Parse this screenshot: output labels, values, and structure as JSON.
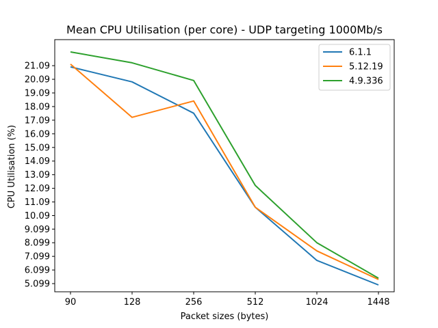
{
  "chart_data": {
    "type": "line",
    "title": "Mean CPU Utilisation (per core) - UDP targeting 1000Mb/s",
    "xlabel": "Packet sizes (bytes)",
    "ylabel": "CPU Utilisation (%)",
    "categories": [
      "90",
      "128",
      "256",
      "512",
      "1024",
      "1448"
    ],
    "yticks": [
      "5.099",
      "6.099",
      "7.099",
      "8.099",
      "9.099",
      "10.09",
      "11.09",
      "12.09",
      "13.09",
      "14.09",
      "15.09",
      "16.09",
      "17.09",
      "18.09",
      "19.09",
      "20.09",
      "21.09"
    ],
    "ytick_values": [
      5.099,
      6.099,
      7.099,
      8.099,
      9.099,
      10.09,
      11.09,
      12.09,
      13.09,
      14.09,
      15.09,
      16.09,
      17.09,
      18.09,
      19.09,
      20.09,
      21.09
    ],
    "ylim": [
      4.5,
      23.0
    ],
    "legend_position": "upper right",
    "grid": false,
    "series": [
      {
        "name": "6.1.1",
        "color": "#1f77b4",
        "values": [
          21.0,
          19.9,
          17.6,
          10.7,
          6.8,
          5.0
        ]
      },
      {
        "name": "5.12.19",
        "color": "#ff7f0e",
        "values": [
          21.2,
          17.3,
          18.5,
          10.7,
          7.5,
          5.4
        ]
      },
      {
        "name": "4.9.336",
        "color": "#2ca02c",
        "values": [
          22.1,
          21.3,
          20.0,
          12.3,
          8.1,
          5.5
        ]
      }
    ]
  }
}
